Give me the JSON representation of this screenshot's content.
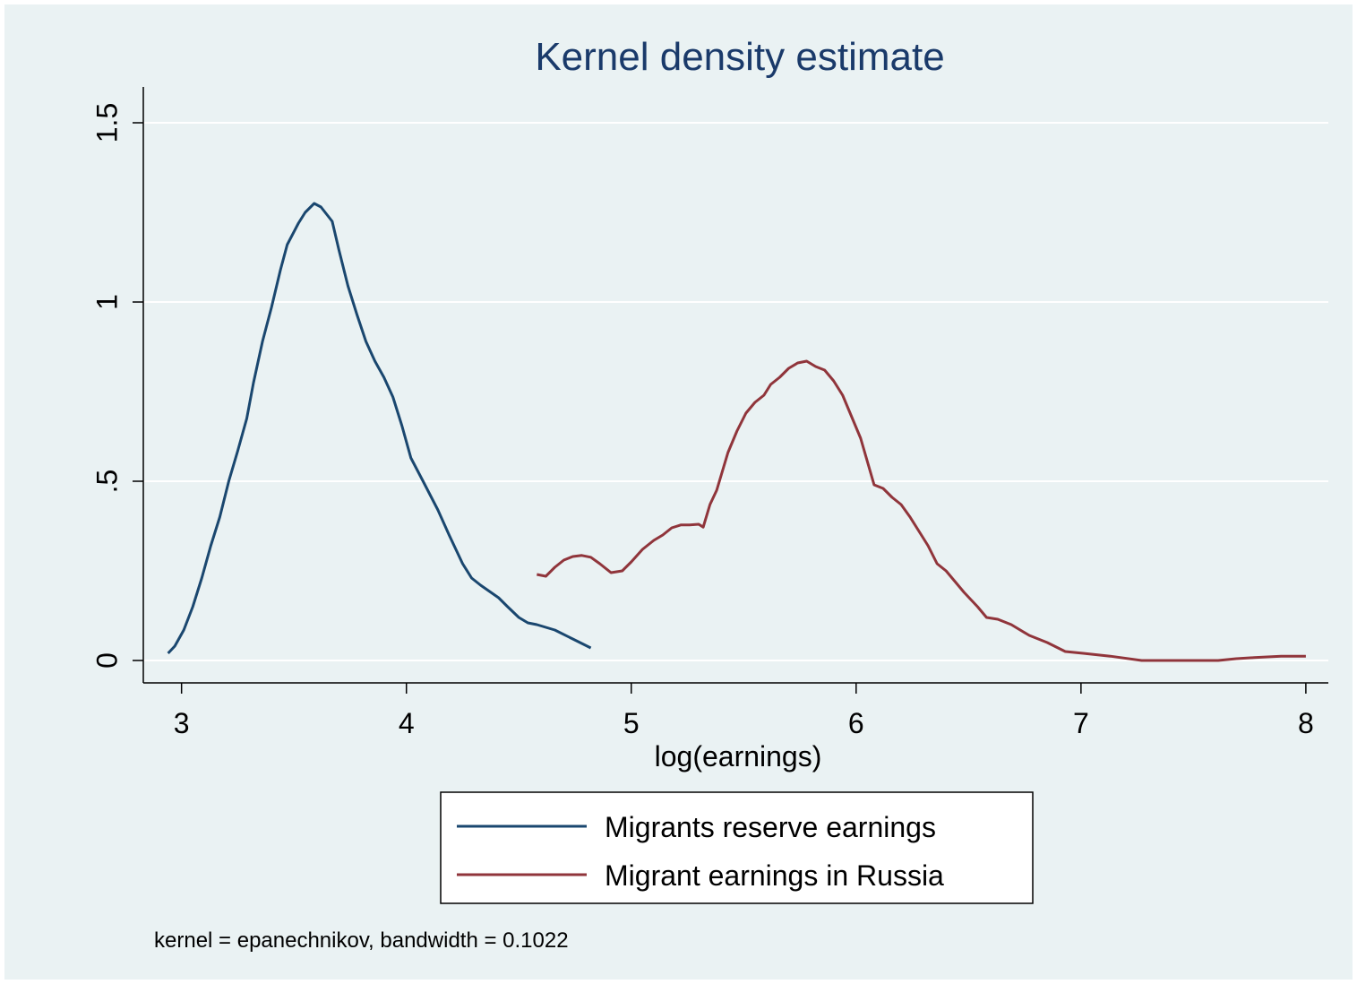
{
  "chart_data": {
    "type": "line",
    "title": "Kernel density estimate",
    "xlabel": "log(earnings)",
    "note": "kernel = epanechnikov, bandwidth = 0.1022",
    "xlim": [
      2.83,
      8.1
    ],
    "xticks": [
      3,
      4,
      5,
      6,
      7,
      8
    ],
    "ylim": [
      -0.0625,
      1.6
    ],
    "yticks": [
      0,
      {
        "value": 0.5,
        "label": ".5"
      },
      1,
      1.5
    ],
    "grid": true,
    "legend": "bottom",
    "series": [
      {
        "name": "Migrants reserve earnings",
        "color": "#1a476f",
        "x": [
          2.94,
          2.97,
          3.01,
          3.05,
          3.09,
          3.13,
          3.17,
          3.21,
          3.25,
          3.29,
          3.32,
          3.36,
          3.4,
          3.44,
          3.47,
          3.52,
          3.55,
          3.59,
          3.62,
          3.67,
          3.7,
          3.74,
          3.78,
          3.82,
          3.86,
          3.9,
          3.94,
          3.98,
          4.02,
          4.07,
          4.14,
          4.19,
          4.25,
          4.29,
          4.33,
          4.41,
          4.45,
          4.5,
          4.54,
          4.58,
          4.66,
          4.74,
          4.82
        ],
        "values": [
          0.02,
          0.04,
          0.085,
          0.15,
          0.23,
          0.32,
          0.4,
          0.5,
          0.585,
          0.675,
          0.775,
          0.89,
          0.985,
          1.09,
          1.16,
          1.22,
          1.25,
          1.275,
          1.265,
          1.225,
          1.145,
          1.045,
          0.965,
          0.89,
          0.835,
          0.79,
          0.735,
          0.655,
          0.565,
          0.505,
          0.42,
          0.35,
          0.27,
          0.23,
          0.21,
          0.175,
          0.15,
          0.12,
          0.105,
          0.1,
          0.085,
          0.06,
          0.035
        ]
      },
      {
        "name": "Migrant earnings in Russia",
        "color": "#90353b",
        "x": [
          4.58,
          4.62,
          4.66,
          4.7,
          4.74,
          4.78,
          4.82,
          4.86,
          4.91,
          4.96,
          5.0,
          5.05,
          5.1,
          5.14,
          5.18,
          5.22,
          5.26,
          5.3,
          5.32,
          5.35,
          5.38,
          5.43,
          5.47,
          5.51,
          5.55,
          5.59,
          5.62,
          5.66,
          5.7,
          5.74,
          5.78,
          5.82,
          5.86,
          5.9,
          5.94,
          5.98,
          6.02,
          6.05,
          6.08,
          6.12,
          6.16,
          6.2,
          6.24,
          6.28,
          6.32,
          6.36,
          6.4,
          6.44,
          6.48,
          6.54,
          6.58,
          6.63,
          6.69,
          6.77,
          6.85,
          6.93,
          7.01,
          7.13,
          7.27,
          7.49,
          7.61,
          7.69,
          7.77,
          7.89,
          8.0
        ],
        "values": [
          0.24,
          0.235,
          0.26,
          0.28,
          0.29,
          0.293,
          0.288,
          0.27,
          0.245,
          0.25,
          0.275,
          0.31,
          0.335,
          0.35,
          0.37,
          0.378,
          0.378,
          0.38,
          0.372,
          0.435,
          0.475,
          0.58,
          0.64,
          0.69,
          0.72,
          0.74,
          0.77,
          0.79,
          0.815,
          0.83,
          0.835,
          0.82,
          0.81,
          0.78,
          0.74,
          0.68,
          0.62,
          0.555,
          0.49,
          0.48,
          0.455,
          0.435,
          0.4,
          0.36,
          0.32,
          0.27,
          0.25,
          0.22,
          0.19,
          0.15,
          0.12,
          0.115,
          0.1,
          0.07,
          0.05,
          0.025,
          0.02,
          0.012,
          0.0,
          0.0,
          0.0,
          0.005,
          0.008,
          0.012,
          0.012
        ]
      }
    ]
  }
}
